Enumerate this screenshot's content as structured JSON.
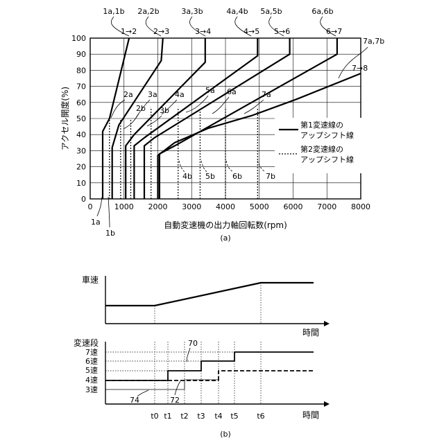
{
  "chart_a": {
    "caption": "(a)",
    "xlabel": "自動変速機の出力軸回転数(rpm)",
    "ylabel": "アクセル開度(%)",
    "xlim": [
      0,
      8000
    ],
    "ylim": [
      0,
      100
    ],
    "xticks": [
      "0",
      "1000",
      "2000",
      "3000",
      "4000",
      "5000",
      "6000",
      "7000",
      "8000"
    ],
    "yticks": [
      "0",
      "10",
      "20",
      "30",
      "40",
      "50",
      "60",
      "70",
      "80",
      "90",
      "100"
    ],
    "legend": {
      "solid_label_1": "第1変速線の",
      "solid_label_2": "アップシフト線",
      "dotted_label_1": "第2変速線の",
      "dotted_label_2": "アップシフト線"
    },
    "top_labels": [
      "1a,1b",
      "2a,2b",
      "3a,3b",
      "4a,4b",
      "5a,5b",
      "6a,6b"
    ],
    "shift_labels": [
      "1→2",
      "2→3",
      "3→4",
      "4→5",
      "5→6",
      "6→7",
      "7→8"
    ],
    "extra_top_label": "7a,7b",
    "line_a_labels": [
      "2a",
      "3a",
      "4a",
      "5a",
      "6a",
      "7a"
    ],
    "line_b_labels": [
      "2b",
      "3b",
      "4b",
      "5b",
      "6b",
      "7b"
    ],
    "bottom_labels": [
      "1a",
      "1b"
    ]
  },
  "chart_data": {
    "type": "line",
    "xlim": [
      0,
      8000
    ],
    "ylim": [
      0,
      100
    ],
    "series": [
      {
        "name": "1→2",
        "points": [
          [
            370,
            0
          ],
          [
            370,
            42
          ],
          [
            570,
            50
          ],
          [
            1150,
            100
          ]
        ]
      },
      {
        "name": "2→3",
        "points": [
          [
            650,
            0
          ],
          [
            650,
            32
          ],
          [
            850,
            46
          ],
          [
            2100,
            86
          ],
          [
            2150,
            100
          ]
        ]
      },
      {
        "name": "3→4",
        "points": [
          [
            1050,
            0
          ],
          [
            1050,
            33
          ],
          [
            1300,
            40
          ],
          [
            3400,
            85
          ],
          [
            3400,
            100
          ]
        ]
      },
      {
        "name": "4→5",
        "points": [
          [
            1300,
            0
          ],
          [
            1300,
            33
          ],
          [
            1600,
            38
          ],
          [
            4950,
            89
          ],
          [
            4950,
            100
          ]
        ]
      },
      {
        "name": "5→6",
        "points": [
          [
            1600,
            0
          ],
          [
            1600,
            33
          ],
          [
            1900,
            38
          ],
          [
            5900,
            90
          ],
          [
            5900,
            100
          ]
        ]
      },
      {
        "name": "6→7",
        "points": [
          [
            2050,
            0
          ],
          [
            2050,
            28
          ],
          [
            2500,
            33
          ],
          [
            7300,
            90
          ],
          [
            7300,
            100
          ]
        ]
      },
      {
        "name": "7→8",
        "points": [
          [
            2000,
            0
          ],
          [
            2000,
            27
          ],
          [
            2500,
            35
          ],
          [
            3500,
            44
          ],
          [
            4800,
            52
          ],
          [
            6100,
            62
          ],
          [
            8000,
            78
          ]
        ]
      }
    ],
    "dotted_lines_rpm": [
      570,
      900,
      1200,
      1800,
      2600,
      3250,
      4000,
      4950
    ]
  },
  "chart_b": {
    "caption": "(b)",
    "speed_label": "車速",
    "time_label": "時間",
    "gear_label": "変速段",
    "gears": [
      "7速",
      "6速",
      "5速",
      "4速",
      "3速"
    ],
    "time_ticks": [
      "t0",
      "t1",
      "t2",
      "t3",
      "t4",
      "t5",
      "t6"
    ],
    "callouts": [
      "70",
      "72",
      "74"
    ]
  }
}
